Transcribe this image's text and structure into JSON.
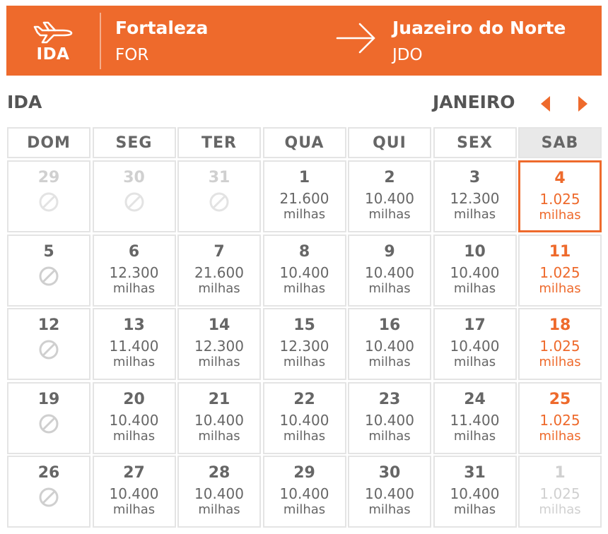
{
  "colors": {
    "accent": "#ee6a2c",
    "muted": "#d0d0d0",
    "text": "#666666"
  },
  "header": {
    "direction_icon": "airplane-icon",
    "direction_label": "IDA",
    "origin": {
      "city": "Fortaleza",
      "code": "FOR"
    },
    "route_icon": "arrow-right-icon",
    "destination": {
      "city": "Juazeiro do Norte",
      "code": "JDO"
    }
  },
  "calendar": {
    "section_title": "IDA",
    "month": "JANEIRO",
    "prev_icon": "chevron-left-icon",
    "next_icon": "chevron-right-icon",
    "weekdays": [
      "DOM",
      "SEG",
      "TER",
      "QUA",
      "QUI",
      "SEX",
      "SAB"
    ],
    "days": [
      {
        "day": "29",
        "outside": true,
        "available": false
      },
      {
        "day": "30",
        "outside": true,
        "available": false
      },
      {
        "day": "31",
        "outside": true,
        "available": false
      },
      {
        "day": "1",
        "price": "21.600",
        "unit": "milhas"
      },
      {
        "day": "2",
        "price": "10.400",
        "unit": "milhas"
      },
      {
        "day": "3",
        "price": "12.300",
        "unit": "milhas"
      },
      {
        "day": "4",
        "price": "1.025",
        "unit": "milhas",
        "selected": true
      },
      {
        "day": "5",
        "available": false
      },
      {
        "day": "6",
        "price": "12.300",
        "unit": "milhas"
      },
      {
        "day": "7",
        "price": "21.600",
        "unit": "milhas"
      },
      {
        "day": "8",
        "price": "10.400",
        "unit": "milhas"
      },
      {
        "day": "9",
        "price": "10.400",
        "unit": "milhas"
      },
      {
        "day": "10",
        "price": "10.400",
        "unit": "milhas"
      },
      {
        "day": "11",
        "price": "1.025",
        "unit": "milhas"
      },
      {
        "day": "12",
        "available": false
      },
      {
        "day": "13",
        "price": "11.400",
        "unit": "milhas"
      },
      {
        "day": "14",
        "price": "12.300",
        "unit": "milhas"
      },
      {
        "day": "15",
        "price": "12.300",
        "unit": "milhas"
      },
      {
        "day": "16",
        "price": "10.400",
        "unit": "milhas"
      },
      {
        "day": "17",
        "price": "10.400",
        "unit": "milhas"
      },
      {
        "day": "18",
        "price": "1.025",
        "unit": "milhas"
      },
      {
        "day": "19",
        "available": false
      },
      {
        "day": "20",
        "price": "10.400",
        "unit": "milhas"
      },
      {
        "day": "21",
        "price": "10.400",
        "unit": "milhas"
      },
      {
        "day": "22",
        "price": "10.400",
        "unit": "milhas"
      },
      {
        "day": "23",
        "price": "10.400",
        "unit": "milhas"
      },
      {
        "day": "24",
        "price": "11.400",
        "unit": "milhas"
      },
      {
        "day": "25",
        "price": "1.025",
        "unit": "milhas"
      },
      {
        "day": "26",
        "available": false
      },
      {
        "day": "27",
        "price": "10.400",
        "unit": "milhas"
      },
      {
        "day": "28",
        "price": "10.400",
        "unit": "milhas"
      },
      {
        "day": "29",
        "price": "10.400",
        "unit": "milhas"
      },
      {
        "day": "30",
        "price": "10.400",
        "unit": "milhas"
      },
      {
        "day": "31",
        "price": "10.400",
        "unit": "milhas"
      },
      {
        "day": "1",
        "price": "1.025",
        "unit": "milhas",
        "outside": true
      }
    ]
  }
}
